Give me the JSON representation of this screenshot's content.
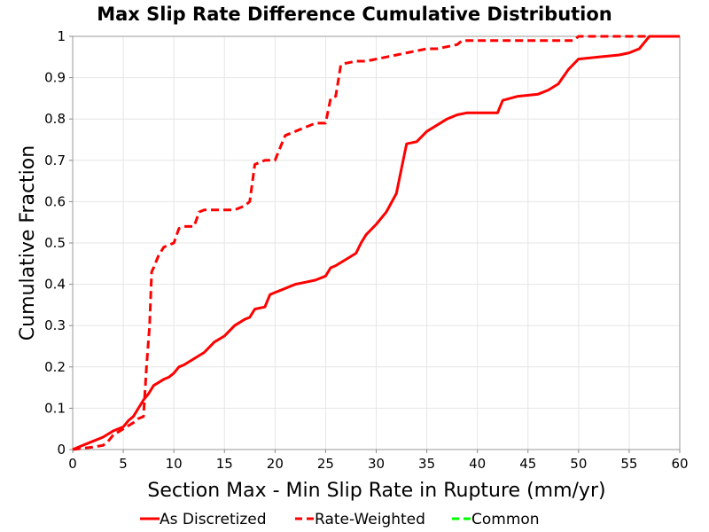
{
  "chart_data": {
    "type": "line",
    "title": "Max Slip Rate Difference Cumulative Distribution",
    "xlabel": "Section Max - Min Slip Rate in Rupture (mm/yr)",
    "ylabel": "Cumulative Fraction",
    "xlim": [
      0,
      60
    ],
    "ylim": [
      0,
      1
    ],
    "xticks": [
      "0",
      "5",
      "10",
      "15",
      "20",
      "25",
      "30",
      "35",
      "40",
      "45",
      "50",
      "55",
      "60"
    ],
    "yticks": [
      "0",
      "0.1",
      "0.2",
      "0.3",
      "0.4",
      "0.5",
      "0.6",
      "0.7",
      "0.8",
      "0.9",
      "1"
    ],
    "grid": true,
    "legend_position": "bottom",
    "series": [
      {
        "name": "As Discretized",
        "color": "#ff0000",
        "dash": "solid",
        "x": [
          0,
          1,
          2,
          3,
          4,
          5,
          5.5,
          6,
          6.5,
          7,
          7.5,
          8,
          9,
          9.5,
          10,
          10.5,
          11,
          12,
          13,
          14,
          15,
          16,
          17,
          17.5,
          18,
          19,
          19.5,
          20,
          21,
          22,
          23,
          24,
          25,
          25.5,
          26,
          27,
          28,
          28.5,
          29,
          30,
          31,
          32,
          32.5,
          33,
          34,
          35,
          36,
          37,
          38,
          39,
          40,
          42,
          42.5,
          44,
          46,
          47,
          48,
          49,
          50,
          52,
          54,
          55,
          56,
          57,
          58,
          60
        ],
        "y": [
          0,
          0.01,
          0.02,
          0.03,
          0.045,
          0.055,
          0.07,
          0.08,
          0.1,
          0.12,
          0.135,
          0.155,
          0.17,
          0.175,
          0.185,
          0.2,
          0.205,
          0.22,
          0.235,
          0.26,
          0.275,
          0.3,
          0.315,
          0.32,
          0.34,
          0.345,
          0.375,
          0.38,
          0.39,
          0.4,
          0.405,
          0.41,
          0.42,
          0.44,
          0.445,
          0.46,
          0.475,
          0.5,
          0.52,
          0.545,
          0.575,
          0.62,
          0.68,
          0.74,
          0.745,
          0.77,
          0.785,
          0.8,
          0.81,
          0.815,
          0.815,
          0.815,
          0.845,
          0.855,
          0.86,
          0.87,
          0.885,
          0.92,
          0.945,
          0.95,
          0.955,
          0.96,
          0.97,
          1,
          1,
          1
        ]
      },
      {
        "name": "Rate-Weighted",
        "color": "#ff0000",
        "dash": "dashed",
        "x": [
          0,
          1,
          2,
          3,
          3.5,
          4,
          5,
          6,
          6.5,
          7,
          7.3,
          7.6,
          7.8,
          8,
          8.5,
          9,
          10,
          10.5,
          11,
          12,
          12.5,
          13,
          14,
          15,
          16,
          17,
          17.5,
          18,
          18.5,
          19,
          20,
          20.5,
          21,
          22,
          23,
          24,
          25,
          25.5,
          26,
          26.5,
          27,
          28,
          29,
          30,
          31,
          32,
          33,
          34,
          35,
          36,
          37,
          38,
          38.5,
          40,
          45,
          49.5,
          50,
          55,
          60
        ],
        "y": [
          0,
          0.003,
          0.006,
          0.01,
          0.02,
          0.035,
          0.05,
          0.065,
          0.075,
          0.08,
          0.2,
          0.3,
          0.43,
          0.44,
          0.47,
          0.49,
          0.5,
          0.535,
          0.54,
          0.54,
          0.575,
          0.58,
          0.58,
          0.58,
          0.58,
          0.59,
          0.6,
          0.69,
          0.695,
          0.7,
          0.7,
          0.73,
          0.76,
          0.77,
          0.78,
          0.79,
          0.79,
          0.85,
          0.855,
          0.93,
          0.935,
          0.94,
          0.94,
          0.945,
          0.95,
          0.955,
          0.96,
          0.965,
          0.97,
          0.97,
          0.975,
          0.98,
          0.99,
          0.99,
          0.99,
          0.99,
          1,
          1,
          1
        ]
      },
      {
        "name": "Common",
        "color": "#00ff00",
        "dash": "dashed",
        "x": [],
        "y": []
      }
    ]
  }
}
